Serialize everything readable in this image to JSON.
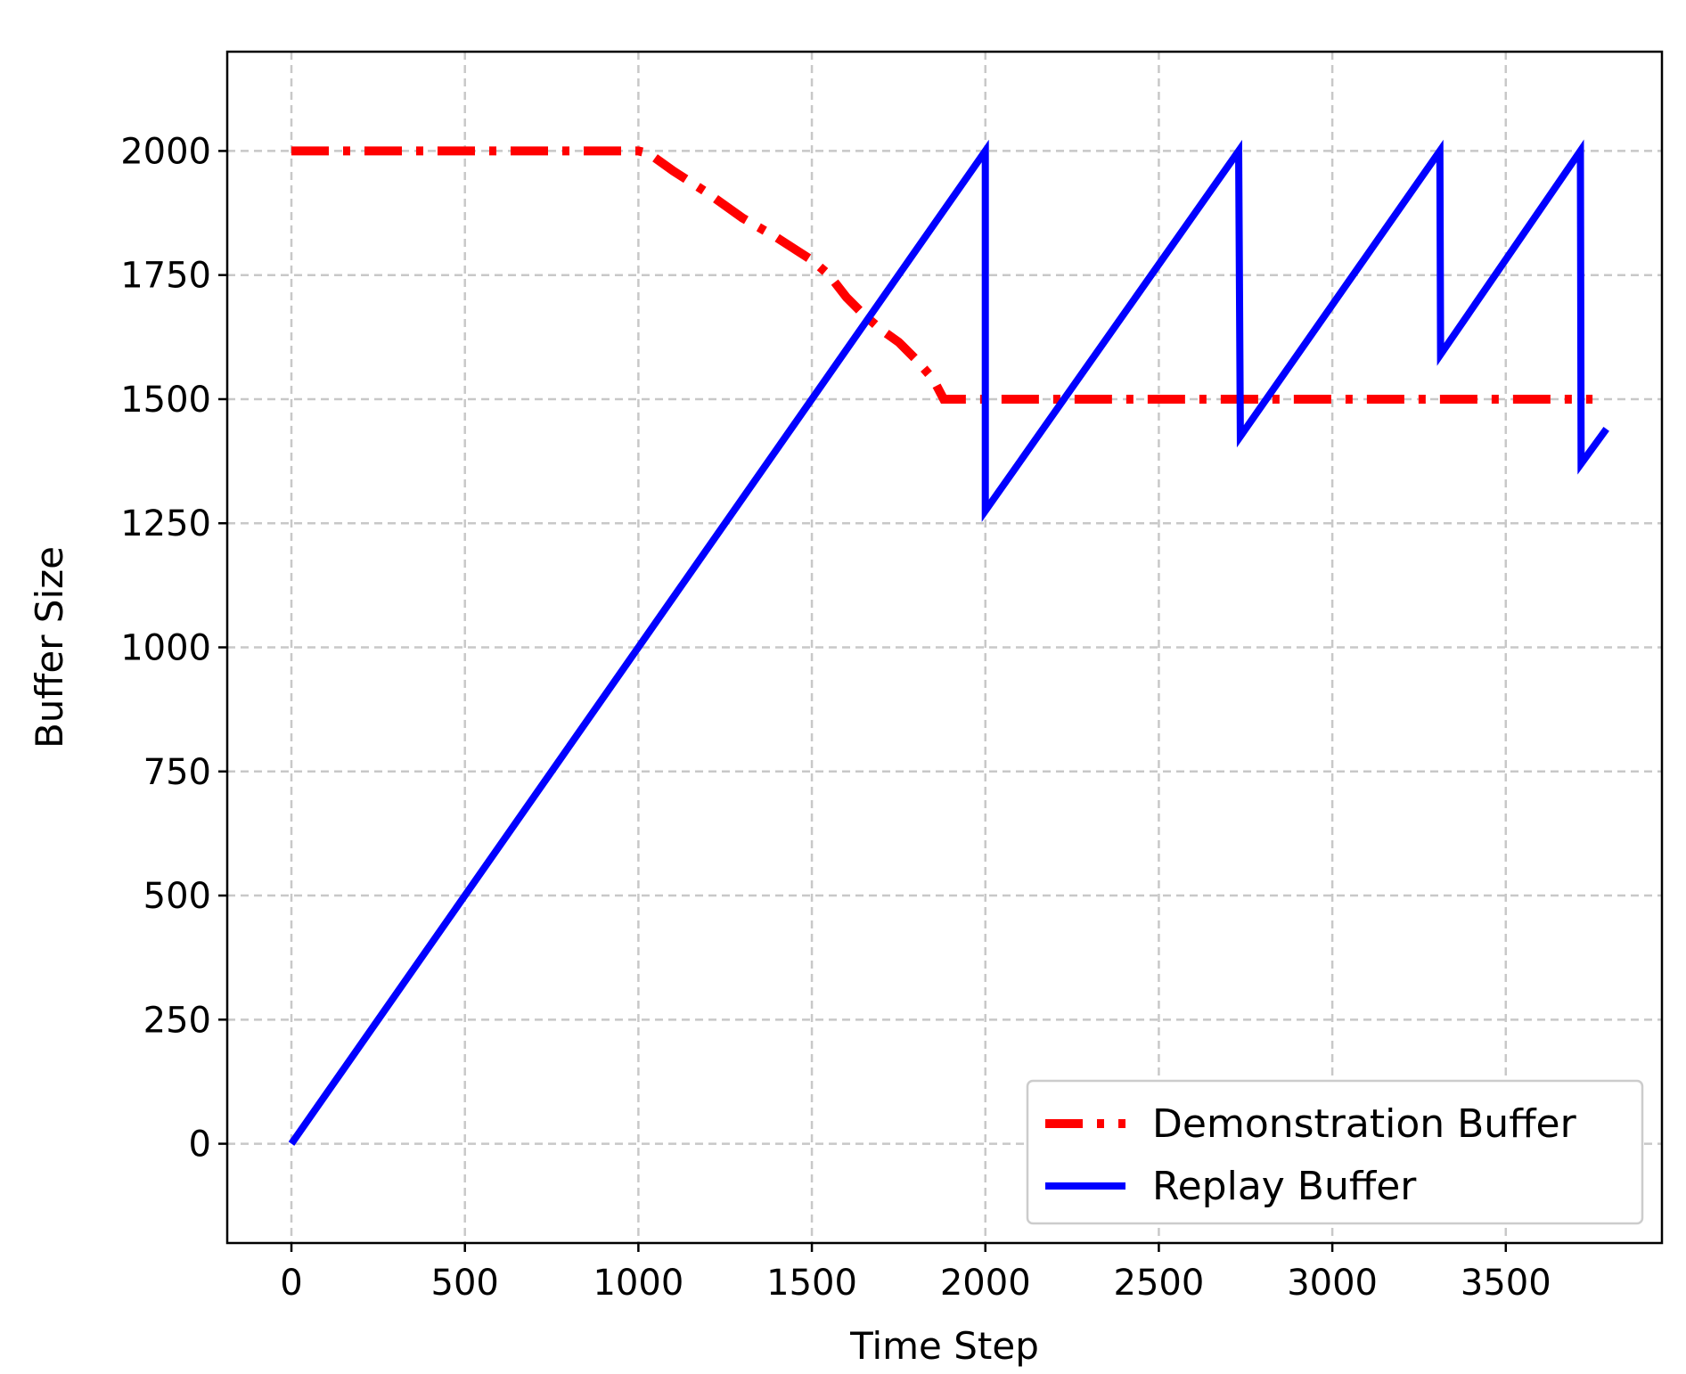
{
  "chart_data": {
    "type": "line",
    "title": "",
    "xlabel": "Time Step",
    "ylabel": "Buffer Size",
    "xlim": [
      -185,
      3950
    ],
    "ylim": [
      -200,
      2200
    ],
    "xticks": [
      0,
      500,
      1000,
      1500,
      2000,
      2500,
      3000,
      3500
    ],
    "yticks": [
      0,
      250,
      500,
      750,
      1000,
      1250,
      1500,
      1750,
      2000
    ],
    "grid": true,
    "legend_position": "lower-right",
    "series": [
      {
        "name": "Demonstration Buffer",
        "color": "#ff0000",
        "style": "dash-dot",
        "x": [
          0,
          1000,
          1030,
          1100,
          1200,
          1300,
          1400,
          1500,
          1550,
          1600,
          1650,
          1700,
          1750,
          1800,
          1850,
          1880,
          2000,
          2500,
          3000,
          3500,
          3750
        ],
        "y": [
          2000,
          2000,
          1995,
          1960,
          1915,
          1865,
          1825,
          1780,
          1750,
          1705,
          1670,
          1640,
          1615,
          1580,
          1540,
          1500,
          1500,
          1500,
          1500,
          1500,
          1500
        ]
      },
      {
        "name": "Replay Buffer",
        "color": "#0000ff",
        "style": "solid",
        "x": [
          0,
          2000,
          2000,
          2730,
          2735,
          3310,
          3312,
          3715,
          3717,
          3790
        ],
        "y": [
          0,
          2000,
          1275,
          2000,
          1425,
          2000,
          1590,
          2000,
          1370,
          1440
        ]
      }
    ]
  }
}
